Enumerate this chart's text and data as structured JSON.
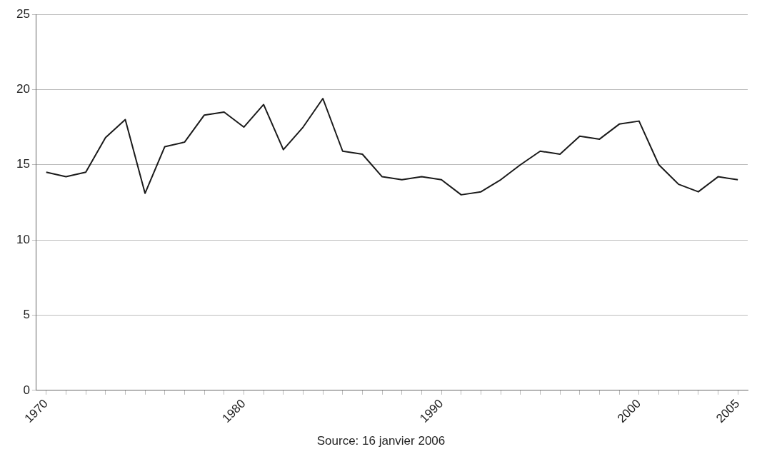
{
  "chart_data": {
    "type": "line",
    "x": [
      1970,
      1971,
      1972,
      1973,
      1974,
      1975,
      1976,
      1977,
      1978,
      1979,
      1980,
      1981,
      1982,
      1983,
      1984,
      1985,
      1986,
      1987,
      1988,
      1989,
      1990,
      1991,
      1992,
      1993,
      1994,
      1995,
      1996,
      1997,
      1998,
      1999,
      2000,
      2001,
      2002,
      2003,
      2004,
      2005
    ],
    "values": [
      14.5,
      14.2,
      14.5,
      16.8,
      18.0,
      13.1,
      16.2,
      16.5,
      18.3,
      18.5,
      17.5,
      19.0,
      16.0,
      17.5,
      19.4,
      15.9,
      15.7,
      14.2,
      14.0,
      14.2,
      14.0,
      13.0,
      13.2,
      14.0,
      15.0,
      15.9,
      15.7,
      16.9,
      16.7,
      17.7,
      17.9,
      15.0,
      13.7,
      13.2,
      14.2,
      14.0
    ],
    "color": "#1a1a1a",
    "xlim": [
      1969.5,
      2005.5
    ],
    "xticks": [
      1970,
      {
        "value": 1971,
        "label": null
      },
      {
        "value": 1972,
        "label": null
      },
      {
        "value": 1973,
        "label": null
      },
      {
        "value": 1974,
        "label": null
      },
      {
        "value": 1975,
        "label": null
      },
      {
        "value": 1976,
        "label": null
      },
      {
        "value": 1977,
        "label": null
      },
      {
        "value": 1978,
        "label": null
      },
      {
        "value": 1979,
        "label": null
      },
      1980,
      {
        "value": 1981,
        "label": null
      },
      {
        "value": 1982,
        "label": null
      },
      {
        "value": 1983,
        "label": null
      },
      {
        "value": 1984,
        "label": null
      },
      {
        "value": 1985,
        "label": null
      },
      {
        "value": 1986,
        "label": null
      },
      {
        "value": 1987,
        "label": null
      },
      {
        "value": 1988,
        "label": null
      },
      {
        "value": 1989,
        "label": null
      },
      1990,
      {
        "value": 1991,
        "label": null
      },
      {
        "value": 1992,
        "label": null
      },
      {
        "value": 1993,
        "label": null
      },
      {
        "value": 1994,
        "label": null
      },
      {
        "value": 1995,
        "label": null
      },
      {
        "value": 1996,
        "label": null
      },
      {
        "value": 1997,
        "label": null
      },
      {
        "value": 1998,
        "label": null
      },
      {
        "value": 1999,
        "label": null
      },
      2000,
      {
        "value": 2001,
        "label": null
      },
      {
        "value": 2002,
        "label": null
      },
      {
        "value": 2003,
        "label": null
      },
      {
        "value": 2004,
        "label": null
      },
      2005
    ],
    "ylim": [
      0,
      25
    ],
    "yticks": [
      0,
      5,
      10,
      15,
      20,
      25
    ],
    "grid": "y",
    "legend": false,
    "marker": "none",
    "line_style": "solid",
    "annotations": [
      "Source: 16 janvier 2006"
    ]
  }
}
